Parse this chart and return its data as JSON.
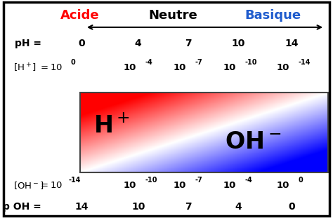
{
  "title_acide": "Acide",
  "title_neutre": "Neutre",
  "title_basique": "Basique",
  "color_acide": "#FF0000",
  "color_neutre": "#000000",
  "color_basique": "#1E5BCD",
  "ph_values": [
    "0",
    "4",
    "7",
    "10",
    "14"
  ],
  "h_exponents": [
    "0",
    "-4",
    "-7",
    "-10",
    "-14"
  ],
  "oh_exponents": [
    "-14",
    "-10",
    "-7",
    "-4",
    "0"
  ],
  "poh_values": [
    "14",
    "10",
    "7",
    "4",
    "0"
  ],
  "background_color": "#ffffff",
  "figure_width": 4.74,
  "figure_height": 3.11,
  "dpi": 100
}
